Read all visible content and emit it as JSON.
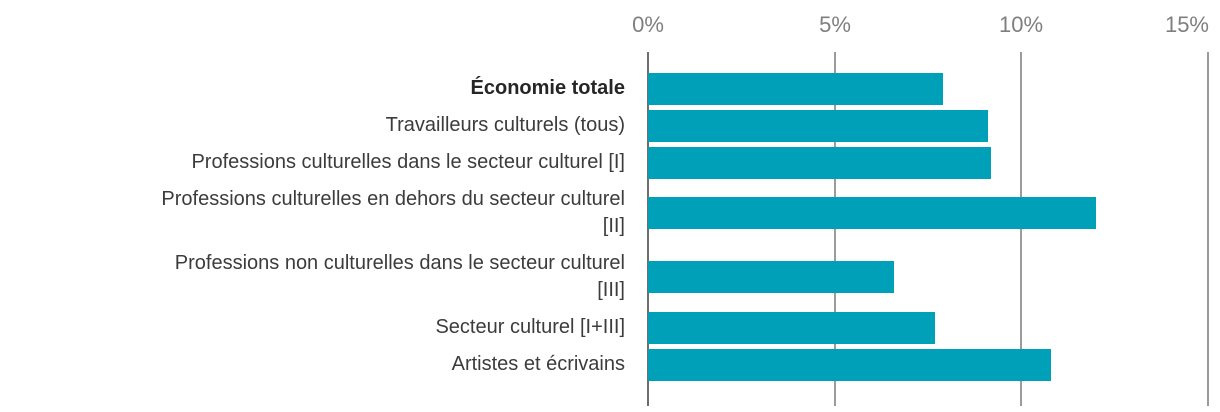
{
  "chart_data": {
    "type": "bar",
    "orientation": "horizontal",
    "title": "",
    "xlabel": "",
    "ylabel": "",
    "xlim": [
      0,
      15
    ],
    "x_tick_unit": "%",
    "x_ticks": [
      "0%",
      "5%",
      "10%",
      "15%"
    ],
    "x_tick_values": [
      0,
      5,
      10,
      15
    ],
    "grid": "vertical-only",
    "legend": "none",
    "categories": [
      "Économie totale",
      "Travailleurs culturels (tous)",
      "Professions culturelles dans le secteur culturel [I]",
      "Professions culturelles en dehors du secteur culturel\n[II]",
      "Professions non culturelles dans le secteur culturel\n[III]",
      "Secteur culturel [I+III]",
      "Artistes et écrivains"
    ],
    "values": [
      7.9,
      9.1,
      9.2,
      12.0,
      6.6,
      7.7,
      10.8
    ],
    "bold_category_index": 0,
    "colors": {
      "bar": "#00a0b9",
      "axis_line": "#6e6e6e",
      "gridline": "#9b9b9b",
      "category_label": "#3c3c3c",
      "bold_category_label": "#262626",
      "tick_label": "#7f7f7f",
      "background": "#ffffff"
    }
  }
}
